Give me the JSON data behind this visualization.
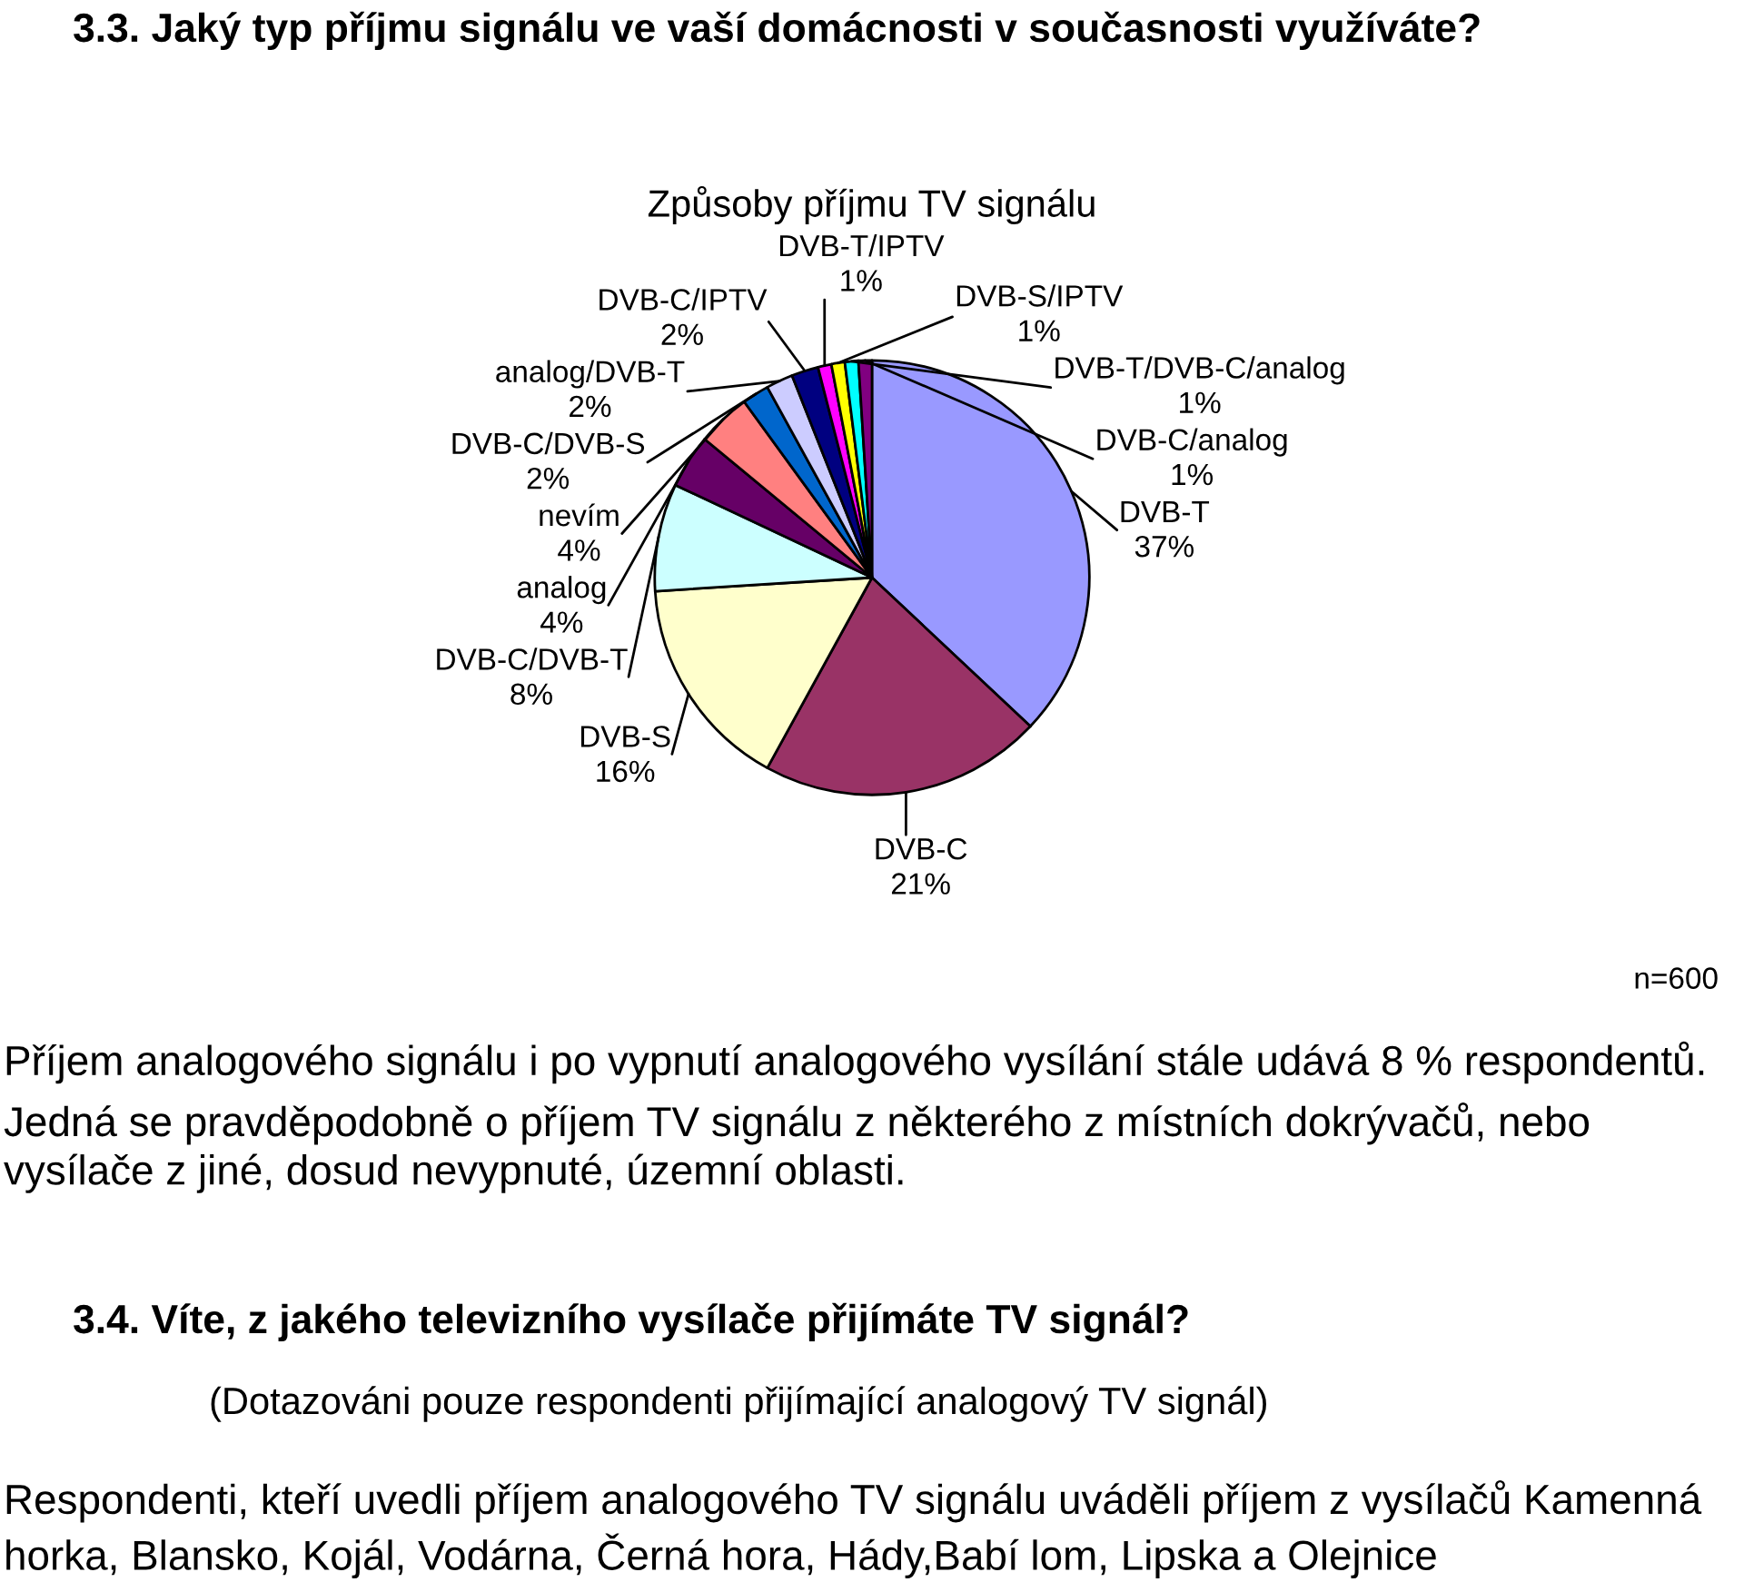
{
  "chart_data": {
    "type": "pie",
    "title": "3.3. Jaký typ příjmu signálu ve vaší domácnosti v současnosti využíváte?",
    "subtitle": "Způsoby příjmu TV signálu",
    "categories": [
      "DVB-T",
      "DVB-C",
      "DVB-S",
      "DVB-C/DVB-T",
      "analog",
      "nevím",
      "DVB-C/DVB-S",
      "analog/DVB-T",
      "DVB-C/IPTV",
      "DVB-T/IPTV",
      "DVB-S/IPTV",
      "DVB-T/DVB-C/analog",
      "DVB-C/analog"
    ],
    "values": [
      37,
      21,
      16,
      8,
      4,
      4,
      2,
      2,
      2,
      1,
      1,
      1,
      1
    ],
    "value_labels": [
      "37%",
      "21%",
      "16%",
      "8%",
      "4%",
      "4%",
      "2%",
      "2%",
      "2%",
      "1%",
      "1%",
      "1%",
      "1%"
    ],
    "colors": [
      "#9999ff",
      "#993366",
      "#ffffcc",
      "#ccffff",
      "#660066",
      "#ff8080",
      "#0066cc",
      "#ccccff",
      "#000080",
      "#ff00ff",
      "#ffff00",
      "#00ffff",
      "#800080"
    ],
    "annotations": [
      "n=600",
      "Příjem analogového signálu i po vypnutí analogového vysílání stále udává 8 % respondentů.",
      "Jedná se pravděpodobně o příjem TV signálu z některého z místních dokrývačů, nebo vysílače z jiné, dosud nevypnuté, územní oblasti.",
      "3.4. Víte, z jakého televizního vysílače přijímáte TV signál?",
      "(Dotazováni pouze respondenti přijímající analogový TV signál)",
      "Respondenti, kteří uvedli příjem analogového TV signálu uváděli příjem z vysílačů Kamenná horka, Blansko, Kojál, Vodárna, Černá hora, Hády,Babí lom, Lipska a Olejnice"
    ]
  }
}
